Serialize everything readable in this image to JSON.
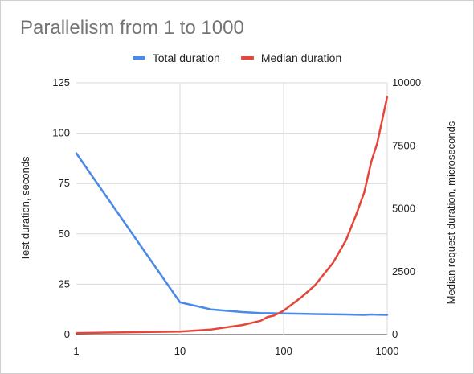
{
  "chart_data": {
    "type": "line",
    "title": "Parallelism from 1 to 1000",
    "xscale": "log",
    "xlim": [
      1,
      1000
    ],
    "x_ticks": [
      1,
      10,
      100,
      1000
    ],
    "x_tick_labels": [
      "1",
      "10",
      "100",
      "1000"
    ],
    "y_left": {
      "label": "Test duration, seconds",
      "ylim": [
        0,
        125
      ],
      "ticks": [
        0,
        25,
        50,
        75,
        100,
        125
      ],
      "tick_labels": [
        "0",
        "25",
        "50",
        "75",
        "100",
        "125"
      ]
    },
    "y_right": {
      "label": "Median request duration, microseconds",
      "ylim": [
        0,
        10000
      ],
      "ticks": [
        0,
        2500,
        5000,
        7500,
        10000
      ],
      "tick_labels": [
        "0",
        "2500",
        "5000",
        "7500",
        "10000"
      ]
    },
    "grid": true,
    "legend_position": "top",
    "series": [
      {
        "name": "Total duration",
        "axis": "left",
        "color": "#4a89e8",
        "points": [
          [
            1,
            90
          ],
          [
            10,
            16
          ],
          [
            20,
            12.5
          ],
          [
            40,
            11.2
          ],
          [
            60,
            10.7
          ],
          [
            80,
            10.6
          ],
          [
            100,
            10.5
          ],
          [
            200,
            10.2
          ],
          [
            400,
            10.0
          ],
          [
            600,
            9.8
          ],
          [
            700,
            10.0
          ],
          [
            800,
            9.9
          ],
          [
            1000,
            9.8
          ]
        ]
      },
      {
        "name": "Median duration",
        "axis": "right",
        "color": "#e5463a",
        "points": [
          [
            1,
            60
          ],
          [
            10,
            120
          ],
          [
            20,
            200
          ],
          [
            40,
            380
          ],
          [
            60,
            550
          ],
          [
            70,
            700
          ],
          [
            80,
            750
          ],
          [
            90,
            850
          ],
          [
            100,
            950
          ],
          [
            150,
            1500
          ],
          [
            200,
            1950
          ],
          [
            300,
            2850
          ],
          [
            400,
            3750
          ],
          [
            500,
            4750
          ],
          [
            600,
            5650
          ],
          [
            700,
            6850
          ],
          [
            800,
            7600
          ],
          [
            1000,
            9450
          ]
        ]
      }
    ]
  }
}
